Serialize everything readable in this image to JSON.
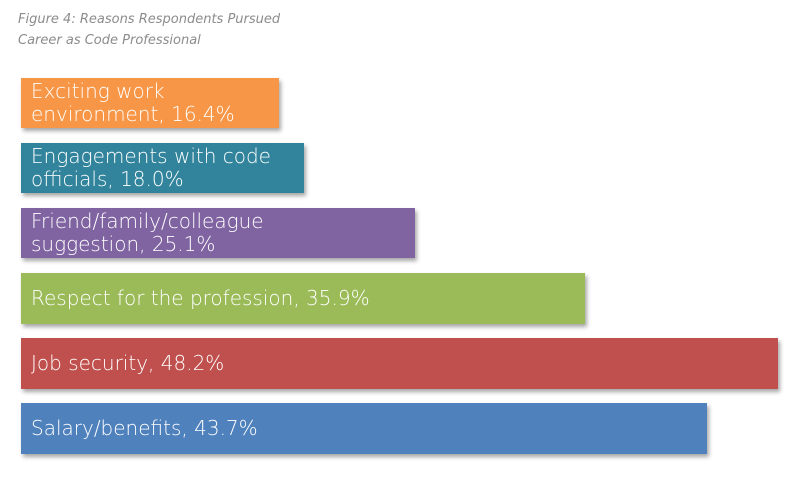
{
  "title": {
    "line1": "Figure 4: Reasons Respondents Pursued",
    "line2": "Career as Code Professional"
  },
  "chart_data": {
    "type": "bar",
    "orientation": "horizontal",
    "title": "Figure 4: Reasons Respondents Pursued Career as Code Professional",
    "grid": false,
    "categories": [
      "Exciting work environment",
      "Engagements with code officials",
      "Friend/family/colleague suggestion",
      "Respect for the profession",
      "Job security",
      "Salary/benefits"
    ],
    "values": [
      16.4,
      18.0,
      25.1,
      35.9,
      48.2,
      43.7
    ],
    "unit": "%",
    "labels": [
      "Exciting work\nenvironment, 16.4%",
      "Engagements with code\nofficials, 18.0%",
      "Friend/family/colleague\nsuggestion, 25.1%",
      "Respect for the profession, 35.9%",
      "Job security, 48.2%",
      "Salary/benefits, 43.7%"
    ],
    "colors": [
      "#f79646",
      "#31849b",
      "#8064a2",
      "#9bbb59",
      "#c0504d",
      "#4f81bd"
    ],
    "xlim": [
      0,
      48.2
    ]
  }
}
